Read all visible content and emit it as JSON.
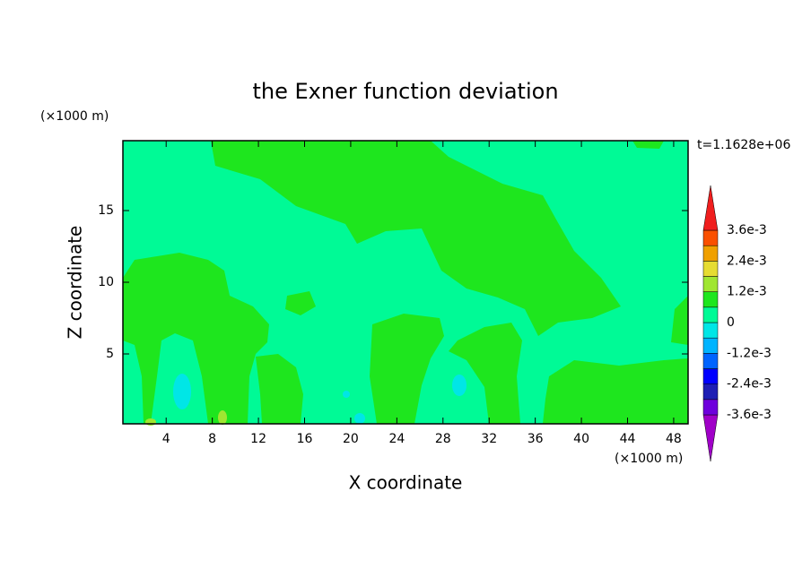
{
  "chart_data": {
    "type": "contour",
    "title": "the Exner function deviation",
    "xlabel": "X coordinate",
    "ylabel": "Z coordinate",
    "x_unit": "(×1000 m)",
    "y_unit": "(×1000 m)",
    "annotation": "t=1.1628e+06",
    "xlim": [
      0.25,
      49.25
    ],
    "xticks": [
      4,
      8,
      12,
      16,
      20,
      24,
      28,
      32,
      36,
      40,
      44,
      48
    ],
    "ylim": [
      0.125,
      19.875
    ],
    "yticks": [
      5,
      10,
      15
    ],
    "colorbar": {
      "levels": [
        -0.0036,
        -0.003,
        -0.0024,
        -0.0018,
        -0.0012,
        -0.0006,
        0,
        0.0006,
        0.0012,
        0.0018,
        0.0024,
        0.003,
        0.0036
      ],
      "colors": [
        "#a000c8",
        "#6e00dc",
        "#1e1eb4",
        "#0000ff",
        "#0064ff",
        "#00b4ff",
        "#00e6e6",
        "#00fa96",
        "#1ee61e",
        "#a0e632",
        "#e6dc32",
        "#f0a000",
        "#fa5000",
        "#f01e1e",
        "#f0a0a0"
      ],
      "ticks": [
        {
          "value": -0.0036,
          "label": "-3.6e-3"
        },
        {
          "value": -0.0024,
          "label": "-2.4e-3"
        },
        {
          "value": -0.0012,
          "label": "-1.2e-3"
        },
        0,
        {
          "value": 0.0012,
          "label": "1.2e-3"
        },
        {
          "value": 0.0024,
          "label": "2.4e-3"
        },
        {
          "value": 0.0036,
          "label": "3.6e-3"
        }
      ]
    }
  }
}
